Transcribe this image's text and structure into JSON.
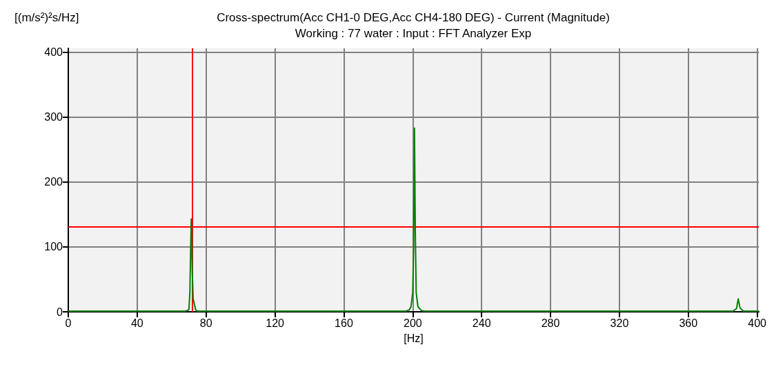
{
  "chart_data": {
    "type": "line",
    "title": "Cross-spectrum(Acc CH1-0 DEG,Acc CH4-180 DEG) - Current (Magnitude)",
    "subtitle": "Working : 77 water : Input : FFT Analyzer Exp",
    "xlabel": "[Hz]",
    "ylabel": "[(m/s²)²s/Hz]",
    "series": [
      {
        "color": "#008000",
        "x": [
          0,
          68,
          70,
          70.6,
          71,
          71.4,
          72,
          72.5,
          74,
          75,
          196,
          198,
          199,
          200,
          200.5,
          201,
          201.5,
          202,
          203,
          205,
          207,
          386,
          388,
          389,
          390,
          392,
          401
        ],
        "values": [
          1,
          1,
          3,
          30,
          90,
          143,
          60,
          20,
          3,
          1,
          1,
          3,
          8,
          30,
          100,
          283,
          120,
          30,
          8,
          2,
          1,
          1,
          5,
          20,
          6,
          1,
          1
        ]
      }
    ],
    "xlim": [
      0,
      401
    ],
    "xticks": [
      0,
      40,
      80,
      120,
      160,
      200,
      240,
      280,
      320,
      360,
      400
    ],
    "ylim": [
      0,
      406
    ],
    "yticks": [
      0,
      100,
      200,
      300,
      400
    ],
    "grid": true,
    "marker": "none",
    "line_style": "solid",
    "ref_lines": [
      {
        "axis": "x",
        "value": 72,
        "color": "#ff0000"
      },
      {
        "axis": "y",
        "value": 131,
        "color": "#ff0000"
      }
    ]
  }
}
